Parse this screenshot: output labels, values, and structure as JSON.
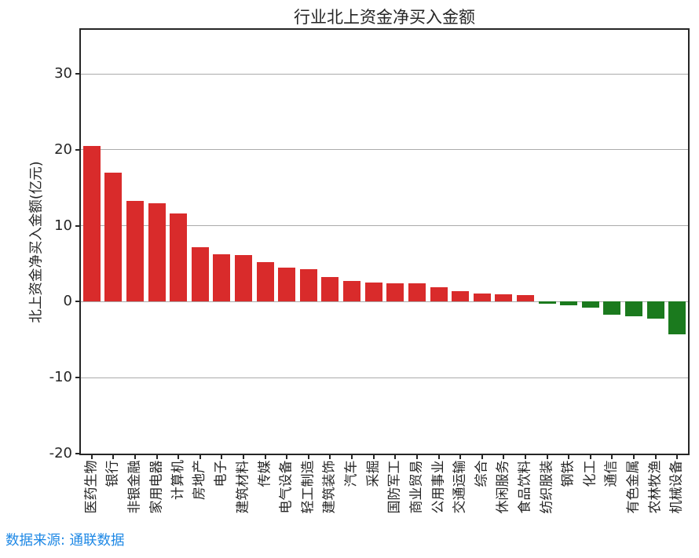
{
  "footer": {
    "source_text": "数据来源: 通联数据",
    "color": "#1E88E5"
  },
  "chart_data": {
    "type": "bar",
    "title": "行业北上资金净买入金额",
    "xlabel": "",
    "ylabel": "北上资金净买入金额(亿元)",
    "unit": "亿元",
    "categories": [
      "医药生物",
      "银行",
      "非银金融",
      "家用电器",
      "计算机",
      "房地产",
      "电子",
      "建筑材料",
      "传媒",
      "电气设备",
      "轻工制造",
      "建筑装饰",
      "汽车",
      "采掘",
      "国防军工",
      "商业贸易",
      "公用事业",
      "交通运输",
      "综合",
      "休闲服务",
      "食品饮料",
      "纺织服装",
      "钢铁",
      "化工",
      "通信",
      "有色金属",
      "农林牧渔",
      "机械设备"
    ],
    "values": [
      20.5,
      17.0,
      13.3,
      13.0,
      11.6,
      7.2,
      6.2,
      6.1,
      5.2,
      4.5,
      4.3,
      3.2,
      2.7,
      2.5,
      2.4,
      2.4,
      1.9,
      1.35,
      1.05,
      1.0,
      0.9,
      -0.25,
      -0.5,
      -0.75,
      -1.7,
      -1.9,
      -2.2,
      -4.3
    ],
    "yticks": [
      30,
      20,
      10,
      0,
      -10,
      -20
    ],
    "ylim": [
      -20,
      35.8
    ],
    "grid": true,
    "legend_position": "none",
    "positive_color": "#d92b2b",
    "negative_color": "#1b7a1e",
    "gridline_color": "#ababab",
    "axis_color": "#262626"
  }
}
